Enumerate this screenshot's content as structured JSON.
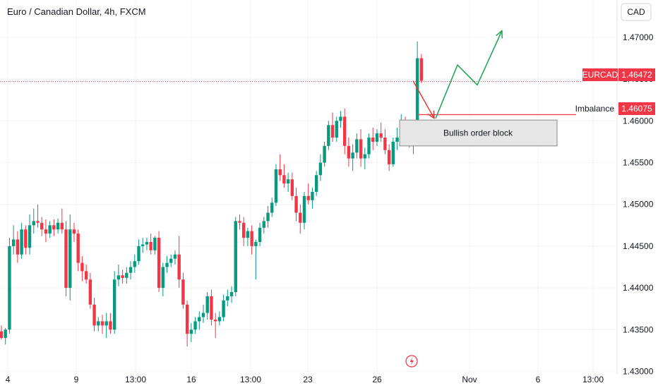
{
  "chart_data": {
    "type": "candlestick",
    "title": "Euro / Canadian Dollar, 4h, FXCM",
    "currency": "CAD",
    "y_ticks": [
      "1.47000",
      "1.46500",
      "1.46000",
      "1.45500",
      "1.45000",
      "1.44500",
      "1.44000",
      "1.43500",
      "1.43000"
    ],
    "ylim": [
      1.4297,
      1.4738
    ],
    "x_ticks": [
      "4",
      "9",
      "13:00",
      "16",
      "13:00",
      "23",
      "26",
      "Nov",
      "6",
      "13:00"
    ],
    "price_label": {
      "symbol": "EURCAD",
      "value": "1.46472",
      "price": 1.46472,
      "color": "#f23645"
    },
    "imbalance_label": {
      "name": "Imbalance",
      "value": "1.46075",
      "price": 1.46075,
      "color": "#f23645"
    },
    "order_block": {
      "label": "Bullish order block",
      "top": 1.4601,
      "bottom": 1.457
    },
    "projection_down": [
      1.4648,
      1.4603
    ],
    "projection_up": [
      1.4603,
      1.4667,
      1.4643,
      1.4708
    ],
    "colors": {
      "up": "#089981",
      "down": "#f23645",
      "projection_up": "#26a65b",
      "projection_down": "#e53935"
    },
    "candles": [
      [
        1.4348,
        1.4355,
        1.4338,
        1.434
      ],
      [
        1.434,
        1.4352,
        1.4332,
        1.435
      ],
      [
        1.435,
        1.446,
        1.4345,
        1.445
      ],
      [
        1.445,
        1.4475,
        1.444,
        1.4458
      ],
      [
        1.4458,
        1.4468,
        1.443,
        1.444
      ],
      [
        1.444,
        1.4478,
        1.4435,
        1.447
      ],
      [
        1.447,
        1.4475,
        1.444,
        1.4448
      ],
      [
        1.4448,
        1.4488,
        1.444,
        1.4475
      ],
      [
        1.4475,
        1.4495,
        1.4465,
        1.448
      ],
      [
        1.448,
        1.45,
        1.4472,
        1.4478
      ],
      [
        1.4478,
        1.4485,
        1.4462,
        1.447
      ],
      [
        1.447,
        1.4482,
        1.4455,
        1.4465
      ],
      [
        1.4465,
        1.448,
        1.446,
        1.4475
      ],
      [
        1.4475,
        1.4482,
        1.4462,
        1.447
      ],
      [
        1.447,
        1.4483,
        1.4465,
        1.4478
      ],
      [
        1.4478,
        1.4495,
        1.4465,
        1.447
      ],
      [
        1.447,
        1.448,
        1.439,
        1.44
      ],
      [
        1.44,
        1.4488,
        1.4385,
        1.447
      ],
      [
        1.447,
        1.4478,
        1.4455,
        1.4465
      ],
      [
        1.4465,
        1.447,
        1.442,
        1.443
      ],
      [
        1.443,
        1.4438,
        1.4408,
        1.442
      ],
      [
        1.442,
        1.4428,
        1.4405,
        1.441
      ],
      [
        1.441,
        1.4418,
        1.4375,
        1.438
      ],
      [
        1.438,
        1.4388,
        1.4348,
        1.4355
      ],
      [
        1.4355,
        1.4365,
        1.4348,
        1.436
      ],
      [
        1.436,
        1.4368,
        1.4345,
        1.4355
      ],
      [
        1.4355,
        1.437,
        1.434,
        1.436
      ],
      [
        1.436,
        1.437,
        1.4345,
        1.435
      ],
      [
        1.435,
        1.442,
        1.4345,
        1.441
      ],
      [
        1.441,
        1.4428,
        1.4402,
        1.4415
      ],
      [
        1.4415,
        1.4422,
        1.4405,
        1.4412
      ],
      [
        1.4412,
        1.4425,
        1.4405,
        1.4418
      ],
      [
        1.4418,
        1.4432,
        1.441,
        1.4425
      ],
      [
        1.4425,
        1.444,
        1.4418,
        1.4432
      ],
      [
        1.4432,
        1.4458,
        1.4428,
        1.445
      ],
      [
        1.445,
        1.446,
        1.4442,
        1.4452
      ],
      [
        1.4452,
        1.446,
        1.4445,
        1.4455
      ],
      [
        1.4455,
        1.4465,
        1.444,
        1.4445
      ],
      [
        1.4445,
        1.4462,
        1.444,
        1.446
      ],
      [
        1.446,
        1.4468,
        1.4395,
        1.44
      ],
      [
        1.44,
        1.443,
        1.439,
        1.4425
      ],
      [
        1.4425,
        1.4438,
        1.4418,
        1.443
      ],
      [
        1.443,
        1.444,
        1.4425,
        1.4435
      ],
      [
        1.4435,
        1.4445,
        1.4428,
        1.444
      ],
      [
        1.444,
        1.4462,
        1.44,
        1.441
      ],
      [
        1.441,
        1.4418,
        1.4375,
        1.438
      ],
      [
        1.438,
        1.4385,
        1.433,
        1.4345
      ],
      [
        1.4345,
        1.4358,
        1.4335,
        1.435
      ],
      [
        1.435,
        1.4365,
        1.4345,
        1.436
      ],
      [
        1.436,
        1.4372,
        1.435,
        1.4365
      ],
      [
        1.4365,
        1.438,
        1.4358,
        1.437
      ],
      [
        1.437,
        1.4395,
        1.4362,
        1.439
      ],
      [
        1.439,
        1.4398,
        1.4355,
        1.4362
      ],
      [
        1.4362,
        1.437,
        1.434,
        1.436
      ],
      [
        1.436,
        1.4372,
        1.4355,
        1.4365
      ],
      [
        1.4365,
        1.4392,
        1.436,
        1.4385
      ],
      [
        1.4385,
        1.4398,
        1.4378,
        1.439
      ],
      [
        1.439,
        1.4402,
        1.4382,
        1.4395
      ],
      [
        1.4395,
        1.4485,
        1.439,
        1.448
      ],
      [
        1.448,
        1.4488,
        1.447,
        1.4478
      ],
      [
        1.4478,
        1.4485,
        1.445,
        1.446
      ],
      [
        1.446,
        1.4472,
        1.445,
        1.4468
      ],
      [
        1.4468,
        1.4475,
        1.444,
        1.445
      ],
      [
        1.445,
        1.4458,
        1.441,
        1.4455
      ],
      [
        1.4455,
        1.4478,
        1.445,
        1.4472
      ],
      [
        1.4472,
        1.4485,
        1.4465,
        1.448
      ],
      [
        1.448,
        1.4498,
        1.4472,
        1.449
      ],
      [
        1.449,
        1.4508,
        1.4485,
        1.4502
      ],
      [
        1.4502,
        1.4548,
        1.4498,
        1.4542
      ],
      [
        1.4542,
        1.456,
        1.4528,
        1.4535
      ],
      [
        1.4535,
        1.4548,
        1.452,
        1.4525
      ],
      [
        1.4525,
        1.4538,
        1.4515,
        1.453
      ],
      [
        1.453,
        1.4538,
        1.4505,
        1.451
      ],
      [
        1.451,
        1.452,
        1.448,
        1.449
      ],
      [
        1.449,
        1.45,
        1.4465,
        1.4478
      ],
      [
        1.4478,
        1.4515,
        1.447,
        1.451
      ],
      [
        1.451,
        1.4525,
        1.45,
        1.4505
      ],
      [
        1.4505,
        1.452,
        1.4495,
        1.4515
      ],
      [
        1.4515,
        1.454,
        1.451,
        1.4535
      ],
      [
        1.4535,
        1.456,
        1.4528,
        1.455
      ],
      [
        1.455,
        1.4575,
        1.4545,
        1.457
      ],
      [
        1.457,
        1.46,
        1.4565,
        1.4595
      ],
      [
        1.4595,
        1.461,
        1.4575,
        1.458
      ],
      [
        1.458,
        1.4605,
        1.4575,
        1.46
      ],
      [
        1.46,
        1.4612,
        1.4592,
        1.4605
      ],
      [
        1.4605,
        1.4615,
        1.456,
        1.457
      ],
      [
        1.457,
        1.458,
        1.4545,
        1.4555
      ],
      [
        1.4555,
        1.4572,
        1.454,
        1.4562
      ],
      [
        1.4562,
        1.4585,
        1.4555,
        1.4578
      ],
      [
        1.4578,
        1.459,
        1.4545,
        1.4555
      ],
      [
        1.4555,
        1.4568,
        1.4542,
        1.456
      ],
      [
        1.456,
        1.4585,
        1.4555,
        1.458
      ],
      [
        1.458,
        1.4592,
        1.4565,
        1.4575
      ],
      [
        1.4575,
        1.459,
        1.457,
        1.4585
      ],
      [
        1.4585,
        1.4598,
        1.4575,
        1.458
      ],
      [
        1.458,
        1.459,
        1.456,
        1.4565
      ],
      [
        1.4565,
        1.4572,
        1.454,
        1.4548
      ],
      [
        1.4548,
        1.458,
        1.4545,
        1.4575
      ],
      [
        1.4575,
        1.4592,
        1.4565,
        1.458
      ],
      [
        1.458,
        1.4608,
        1.4575,
        1.46
      ],
      [
        1.46,
        1.4605,
        1.4578,
        1.4585
      ],
      [
        1.4585,
        1.4592,
        1.4568,
        1.4575
      ],
      [
        1.4575,
        1.46,
        1.456,
        1.459
      ],
      [
        1.459,
        1.4695,
        1.4585,
        1.4675
      ],
      [
        1.4675,
        1.468,
        1.4645,
        1.4648
      ]
    ]
  }
}
